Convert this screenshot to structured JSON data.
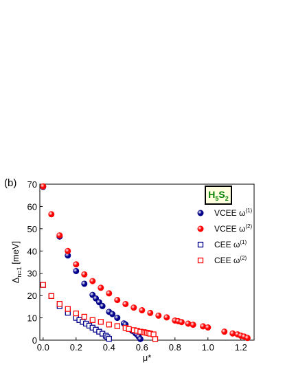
{
  "panel_label": "(b)",
  "compound": {
    "a": "H",
    "a_sub": "5",
    "b": "S",
    "b_sub": "2"
  },
  "chart_data": {
    "type": "scatter",
    "xlabel": "μ*",
    "ylabel": "Δ",
    "ylabel_sub": "n=1",
    "ylabel_unit": "[meV]",
    "xlim": [
      -0.02,
      1.28
    ],
    "ylim": [
      0,
      70
    ],
    "xticks": [
      "0.0",
      "0.2",
      "0.4",
      "0.6",
      "0.8",
      "1.0",
      "1.2"
    ],
    "yticks": [
      "0",
      "10",
      "20",
      "30",
      "40",
      "50",
      "60",
      "70"
    ],
    "legend_position": "right",
    "series": [
      {
        "name": "VCEE ω",
        "sup": "(1)",
        "marker": "filled-circle",
        "color": "#00008b",
        "points": [
          [
            0.0,
            68.8
          ],
          [
            0.1,
            46.5
          ],
          [
            0.15,
            38.0
          ],
          [
            0.2,
            31.0
          ],
          [
            0.25,
            25.3
          ],
          [
            0.3,
            20.3
          ],
          [
            0.32,
            18.7
          ],
          [
            0.34,
            17.0
          ],
          [
            0.36,
            15.3
          ],
          [
            0.4,
            12.7
          ],
          [
            0.42,
            11.7
          ],
          [
            0.45,
            10.0
          ],
          [
            0.49,
            7.5
          ],
          [
            0.5,
            7.0
          ],
          [
            0.54,
            4.2
          ],
          [
            0.56,
            3.1
          ],
          [
            0.57,
            2.5
          ],
          [
            0.58,
            1.6
          ],
          [
            0.59,
            0.5
          ]
        ]
      },
      {
        "name": "VCEE ω",
        "sup": "(2)",
        "marker": "filled-circle",
        "color": "#ff0000",
        "points": [
          [
            0.0,
            69.0
          ],
          [
            0.05,
            56.5
          ],
          [
            0.1,
            47.0
          ],
          [
            0.15,
            40.0
          ],
          [
            0.2,
            34.0
          ],
          [
            0.25,
            29.5
          ],
          [
            0.3,
            26.5
          ],
          [
            0.35,
            23.5
          ],
          [
            0.4,
            21.0
          ],
          [
            0.45,
            18.0
          ],
          [
            0.5,
            16.2
          ],
          [
            0.55,
            14.6
          ],
          [
            0.6,
            13.4
          ],
          [
            0.65,
            12.2
          ],
          [
            0.7,
            11.0
          ],
          [
            0.75,
            10.2
          ],
          [
            0.8,
            8.8
          ],
          [
            0.82,
            8.5
          ],
          [
            0.84,
            8.1
          ],
          [
            0.88,
            7.4
          ],
          [
            0.91,
            6.9
          ],
          [
            0.97,
            6.2
          ],
          [
            1.0,
            5.7
          ],
          [
            1.1,
            3.8
          ],
          [
            1.15,
            3.0
          ],
          [
            1.18,
            2.6
          ],
          [
            1.2,
            2.0
          ],
          [
            1.22,
            1.6
          ],
          [
            1.24,
            1.0
          ]
        ]
      },
      {
        "name": "CEE ω",
        "sup": "(1)",
        "marker": "open-square",
        "color": "#00008b",
        "points": [
          [
            0.0,
            24.8
          ],
          [
            0.05,
            19.8
          ],
          [
            0.1,
            15.3
          ],
          [
            0.15,
            12.3
          ],
          [
            0.2,
            10.0
          ],
          [
            0.22,
            9.0
          ],
          [
            0.24,
            8.2
          ],
          [
            0.26,
            7.4
          ],
          [
            0.28,
            6.5
          ],
          [
            0.3,
            5.6
          ],
          [
            0.32,
            4.7
          ],
          [
            0.34,
            3.8
          ],
          [
            0.36,
            2.9
          ],
          [
            0.38,
            2.0
          ],
          [
            0.39,
            1.3
          ],
          [
            0.4,
            0.6
          ]
        ]
      },
      {
        "name": "CEE ω",
        "sup": "(2)",
        "marker": "open-square",
        "color": "#ff0000",
        "points": [
          [
            0.0,
            24.8
          ],
          [
            0.05,
            19.8
          ],
          [
            0.1,
            16.3
          ],
          [
            0.15,
            14.0
          ],
          [
            0.2,
            12.0
          ],
          [
            0.25,
            10.5
          ],
          [
            0.3,
            9.0
          ],
          [
            0.35,
            8.2
          ],
          [
            0.4,
            7.0
          ],
          [
            0.45,
            6.3
          ],
          [
            0.5,
            5.5
          ],
          [
            0.52,
            5.0
          ],
          [
            0.55,
            4.5
          ],
          [
            0.57,
            4.2
          ],
          [
            0.59,
            3.8
          ],
          [
            0.61,
            3.6
          ],
          [
            0.62,
            3.4
          ],
          [
            0.63,
            3.3
          ],
          [
            0.64,
            3.1
          ],
          [
            0.65,
            2.9
          ],
          [
            0.67,
            2.6
          ],
          [
            0.68,
            0.5
          ]
        ]
      }
    ]
  }
}
